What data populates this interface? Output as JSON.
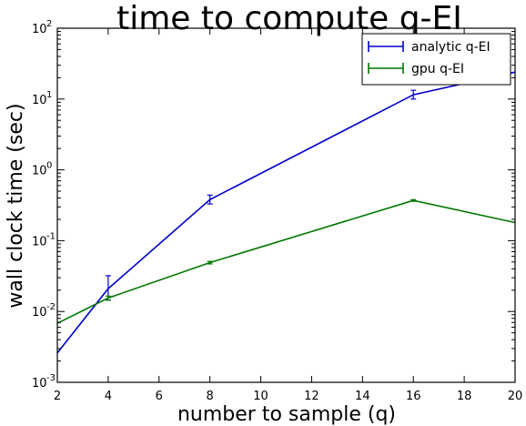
{
  "chart_data": {
    "type": "line",
    "title": "time to compute q-EI",
    "xlabel": "number to sample (q)",
    "ylabel": "wall clock time (sec)",
    "xlim": [
      2,
      20
    ],
    "ylim": [
      0.001,
      100
    ],
    "yscale": "log",
    "grid": false,
    "legend_position": "top-right",
    "x_ticks": [
      "2",
      "4",
      "6",
      "8",
      "10",
      "12",
      "14",
      "16",
      "18",
      "20"
    ],
    "y_ticks": [
      {
        "base": "10",
        "exp": "-3"
      },
      {
        "base": "10",
        "exp": "-2"
      },
      {
        "base": "10",
        "exp": "-1"
      },
      {
        "base": "10",
        "exp": "0"
      },
      {
        "base": "10",
        "exp": "1"
      },
      {
        "base": "10",
        "exp": "2"
      }
    ],
    "series": [
      {
        "name": "analytic q-EI",
        "color": "#0000cc",
        "x": [
          2,
          4,
          8,
          16,
          20
        ],
        "y": [
          0.0026,
          0.021,
          0.38,
          11.5,
          24
        ],
        "err_low": [
          0.0026,
          0.0145,
          0.33,
          10.0,
          24
        ],
        "err_high": [
          0.0026,
          0.032,
          0.44,
          13.3,
          24
        ]
      },
      {
        "name": "gpu q-EI",
        "color": "#007700",
        "x": [
          2,
          4,
          8,
          16,
          20
        ],
        "y": [
          0.0068,
          0.0155,
          0.049,
          0.37,
          0.18
        ],
        "err_low": [
          0.0068,
          0.0145,
          0.047,
          0.36,
          0.18
        ],
        "err_high": [
          0.0068,
          0.0165,
          0.051,
          0.38,
          0.18
        ]
      }
    ]
  }
}
